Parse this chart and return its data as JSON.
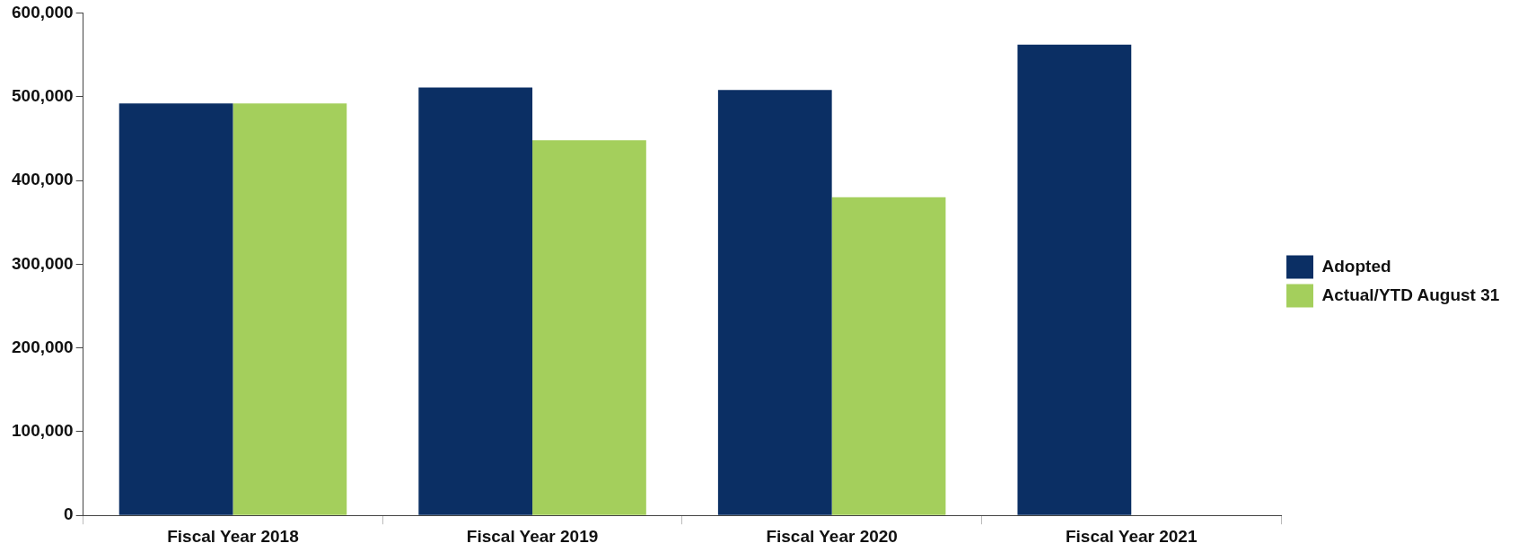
{
  "chart_data": {
    "type": "bar",
    "categories": [
      "Fiscal Year 2018",
      "Fiscal Year 2019",
      "Fiscal Year 2020",
      "Fiscal Year 2021"
    ],
    "series": [
      {
        "name": "Adopted",
        "color": "#0b2f64",
        "values": [
          492000,
          511000,
          508000,
          562000
        ]
      },
      {
        "name": "Actual/YTD August 31",
        "color": "#a4cf5c",
        "values": [
          492000,
          448000,
          380000,
          null
        ]
      }
    ],
    "ylim": [
      0,
      600000
    ],
    "yticks": [
      {
        "value": 0,
        "label": "0"
      },
      {
        "value": 100000,
        "label": "100,000"
      },
      {
        "value": 200000,
        "label": "200,000"
      },
      {
        "value": 300000,
        "label": "300,000"
      },
      {
        "value": 400000,
        "label": "400,000"
      },
      {
        "value": 500000,
        "label": "500,000"
      },
      {
        "value": 600000,
        "label": "600,000"
      }
    ],
    "grid": false,
    "legend": "right"
  }
}
